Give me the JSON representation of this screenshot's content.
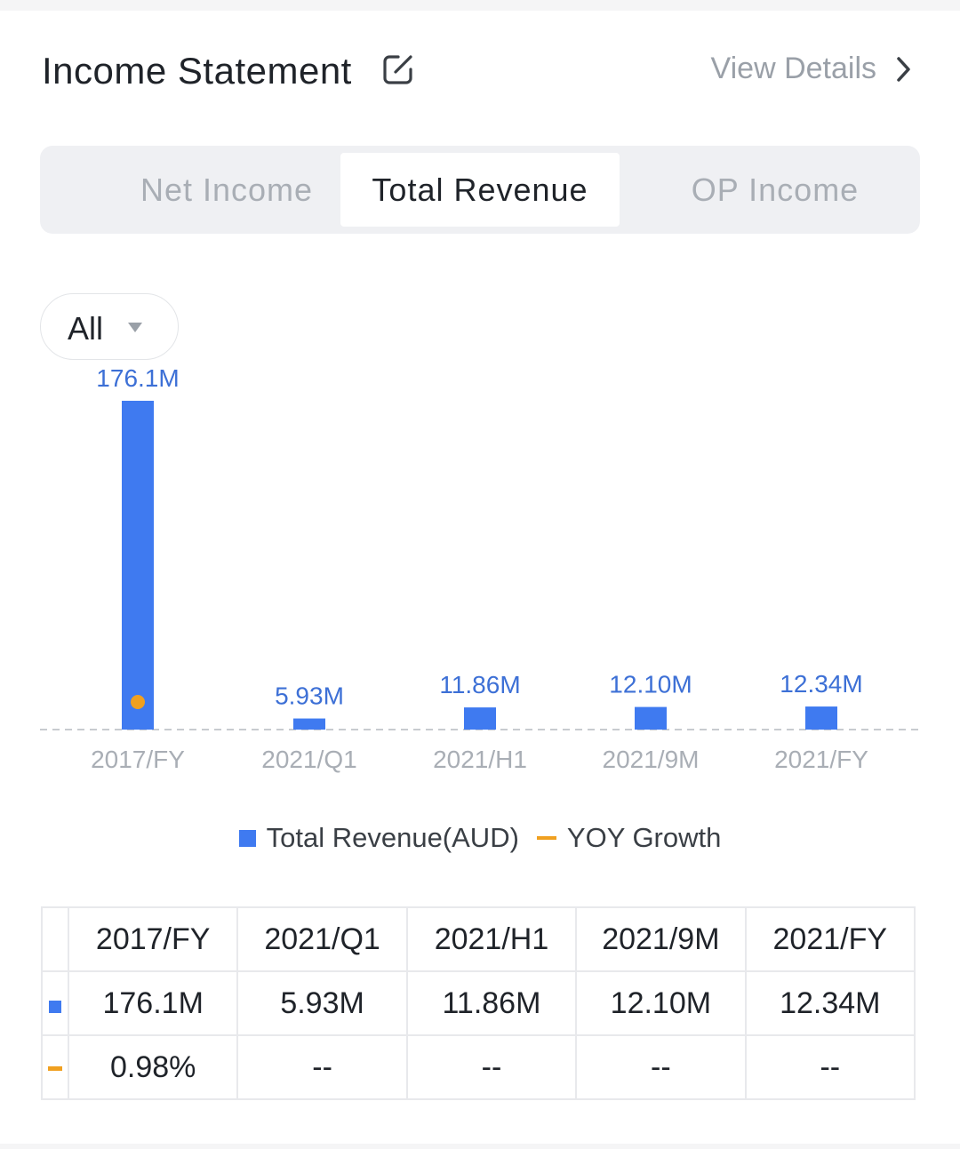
{
  "header": {
    "title": "Income Statement",
    "view_details": "View Details"
  },
  "tabs": [
    {
      "label": "Net Income",
      "active": false
    },
    {
      "label": "Total Revenue",
      "active": true
    },
    {
      "label": "OP Income",
      "active": false
    }
  ],
  "filter": {
    "selected": "All"
  },
  "colors": {
    "bar": "#3f7af0",
    "growth": "#f0a020",
    "positive": "#1aa163"
  },
  "chart_data": {
    "type": "bar",
    "categories": [
      "2017/FY",
      "2021/Q1",
      "2021/H1",
      "2021/9M",
      "2021/FY"
    ],
    "series": [
      {
        "name": "Total Revenue(AUD)",
        "type": "bar",
        "values": [
          176.1,
          5.93,
          11.86,
          12.1,
          12.34
        ],
        "labels": [
          "176.1M",
          "5.93M",
          "11.86M",
          "12.10M",
          "12.34M"
        ]
      },
      {
        "name": "YOY Growth",
        "type": "line",
        "values": [
          0.98,
          null,
          null,
          null,
          null
        ]
      }
    ],
    "ylim": [
      0,
      176.1
    ]
  },
  "legend": {
    "revenue": "Total Revenue(AUD)",
    "growth": "YOY Growth"
  },
  "table": {
    "headers": [
      "2017/FY",
      "2021/Q1",
      "2021/H1",
      "2021/9M",
      "2021/FY"
    ],
    "revenue_row": [
      "176.1M",
      "5.93M",
      "11.86M",
      "12.10M",
      "12.34M"
    ],
    "growth_row": [
      "0.98%",
      "--",
      "--",
      "--",
      "--"
    ]
  }
}
